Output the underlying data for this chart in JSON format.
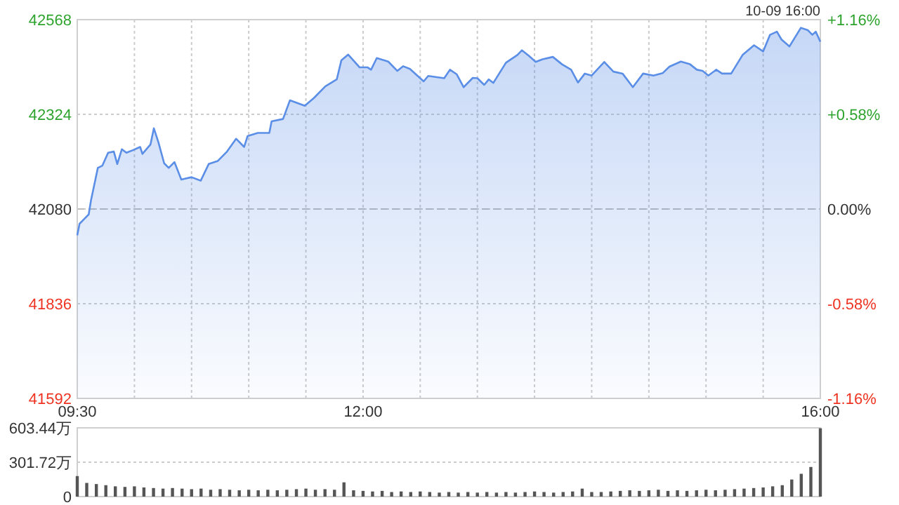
{
  "chart_data": [
    {
      "type": "area",
      "color": "#5b8ee6",
      "grid": true,
      "annotations": [
        "10-09 16:00"
      ],
      "xlim": [
        9.5,
        16
      ],
      "xticks": [
        {
          "value": 9.5,
          "label": "09:30"
        },
        {
          "value": 10,
          "label": null
        },
        {
          "value": 10.5,
          "label": null
        },
        {
          "value": 11,
          "label": null
        },
        {
          "value": 11.5,
          "label": null
        },
        {
          "value": 12,
          "label": "12:00"
        },
        {
          "value": 12.5,
          "label": null
        },
        {
          "value": 13,
          "label": null
        },
        {
          "value": 13.5,
          "label": null
        },
        {
          "value": 14,
          "label": null
        },
        {
          "value": 14.5,
          "label": null
        },
        {
          "value": 15,
          "label": null
        },
        {
          "value": 15.5,
          "label": null
        },
        {
          "value": 16,
          "label": "16:00"
        }
      ],
      "ylim": [
        41592,
        42568
      ],
      "yticks": [
        41592,
        41836,
        42080,
        42324,
        42568
      ],
      "y2lim": [
        -1.16,
        1.16
      ],
      "y2ticks": [
        {
          "value": -1.16,
          "label": "-1.16%"
        },
        {
          "value": -0.58,
          "label": "-0.58%"
        },
        {
          "value": 0,
          "label": "0.00%"
        },
        {
          "value": 0.58,
          "label": "+0.58%"
        },
        {
          "value": 1.16,
          "label": "+1.16%"
        }
      ],
      "ref_lines": [
        {
          "axis": "y",
          "value": 42080,
          "label": null,
          "color": "#bbbbbb",
          "line_style": "dashed"
        }
      ],
      "x": [
        9.5,
        9.52,
        9.56,
        9.6,
        9.62,
        9.68,
        9.72,
        9.77,
        9.82,
        9.85,
        9.89,
        9.93,
        9.99,
        10.05,
        10.07,
        10.14,
        10.17,
        10.21,
        10.26,
        10.3,
        10.35,
        10.41,
        10.5,
        10.58,
        10.65,
        10.73,
        10.81,
        10.89,
        10.96,
        10.99,
        11.08,
        11.18,
        11.2,
        11.3,
        11.36,
        11.49,
        11.57,
        11.67,
        11.77,
        11.81,
        11.87,
        11.97,
        12.04,
        12.07,
        12.12,
        12.22,
        12.3,
        12.35,
        12.41,
        12.53,
        12.57,
        12.71,
        12.76,
        12.82,
        12.88,
        12.96,
        13.0,
        13.06,
        13.1,
        13.14,
        13.25,
        13.35,
        13.39,
        13.45,
        13.51,
        13.57,
        13.66,
        13.74,
        13.82,
        13.88,
        13.94,
        14.0,
        14.11,
        14.19,
        14.27,
        14.36,
        14.45,
        14.54,
        14.62,
        14.68,
        14.78,
        14.86,
        14.92,
        14.97,
        15.02,
        15.09,
        15.14,
        15.22,
        15.32,
        15.42,
        15.5,
        15.56,
        15.62,
        15.66,
        15.73,
        15.83,
        15.89,
        15.93,
        15.96,
        16.0
      ],
      "values": [
        42012,
        42042,
        42054,
        42066,
        42102,
        42186,
        42192,
        42225,
        42228,
        42196,
        42234,
        42225,
        42232,
        42240,
        42222,
        42246,
        42288,
        42252,
        42198,
        42186,
        42201,
        42156,
        42162,
        42153,
        42196,
        42204,
        42228,
        42261,
        42240,
        42268,
        42276,
        42276,
        42306,
        42312,
        42360,
        42346,
        42366,
        42396,
        42414,
        42463,
        42478,
        42445,
        42445,
        42439,
        42469,
        42460,
        42436,
        42448,
        42441,
        42409,
        42423,
        42417,
        42439,
        42427,
        42394,
        42418,
        42417,
        42400,
        42414,
        42405,
        42457,
        42477,
        42489,
        42475,
        42459,
        42466,
        42472,
        42453,
        42439,
        42406,
        42429,
        42424,
        42459,
        42434,
        42429,
        42394,
        42429,
        42424,
        42430,
        42447,
        42460,
        42453,
        42439,
        42436,
        42424,
        42439,
        42429,
        42429,
        42477,
        42502,
        42486,
        42529,
        42537,
        42517,
        42499,
        42547,
        42541,
        42529,
        42537,
        42511
      ]
    },
    {
      "type": "bar",
      "color": "#555555",
      "grid": "y",
      "tick_labels": "y",
      "xlim": [
        9.5,
        16
      ],
      "ylim": [
        0,
        603.44
      ],
      "yticks": [
        0,
        {
          "value": 301.72,
          "label": "301.72万"
        },
        {
          "value": 603.44,
          "label": "603.44万"
        }
      ],
      "x": [
        9.5,
        9.583,
        9.667,
        9.75,
        9.833,
        9.917,
        10.0,
        10.083,
        10.167,
        10.25,
        10.333,
        10.417,
        10.5,
        10.583,
        10.667,
        10.75,
        10.833,
        10.917,
        11.0,
        11.083,
        11.167,
        11.25,
        11.333,
        11.417,
        11.5,
        11.583,
        11.667,
        11.75,
        11.833,
        11.917,
        12.0,
        12.083,
        12.167,
        12.25,
        12.333,
        12.417,
        12.5,
        12.583,
        12.667,
        12.75,
        12.833,
        12.917,
        13.0,
        13.083,
        13.167,
        13.25,
        13.333,
        13.417,
        13.5,
        13.583,
        13.667,
        13.75,
        13.833,
        13.917,
        14.0,
        14.083,
        14.167,
        14.25,
        14.333,
        14.417,
        14.5,
        14.583,
        14.667,
        14.75,
        14.833,
        14.917,
        15.0,
        15.083,
        15.167,
        15.25,
        15.333,
        15.417,
        15.5,
        15.583,
        15.667,
        15.75,
        15.833,
        15.917,
        16.0
      ],
      "values": [
        180,
        120,
        110,
        100,
        90,
        85,
        90,
        80,
        75,
        70,
        75,
        70,
        65,
        70,
        60,
        65,
        60,
        55,
        60,
        55,
        60,
        55,
        60,
        65,
        70,
        60,
        65,
        60,
        125,
        55,
        50,
        45,
        50,
        40,
        45,
        40,
        45,
        40,
        35,
        40,
        35,
        40,
        35,
        40,
        35,
        40,
        35,
        40,
        45,
        40,
        35,
        40,
        45,
        70,
        40,
        40,
        45,
        50,
        55,
        50,
        55,
        60,
        50,
        55,
        50,
        55,
        60,
        55,
        60,
        65,
        70,
        75,
        80,
        90,
        100,
        150,
        200,
        260,
        600
      ]
    }
  ]
}
